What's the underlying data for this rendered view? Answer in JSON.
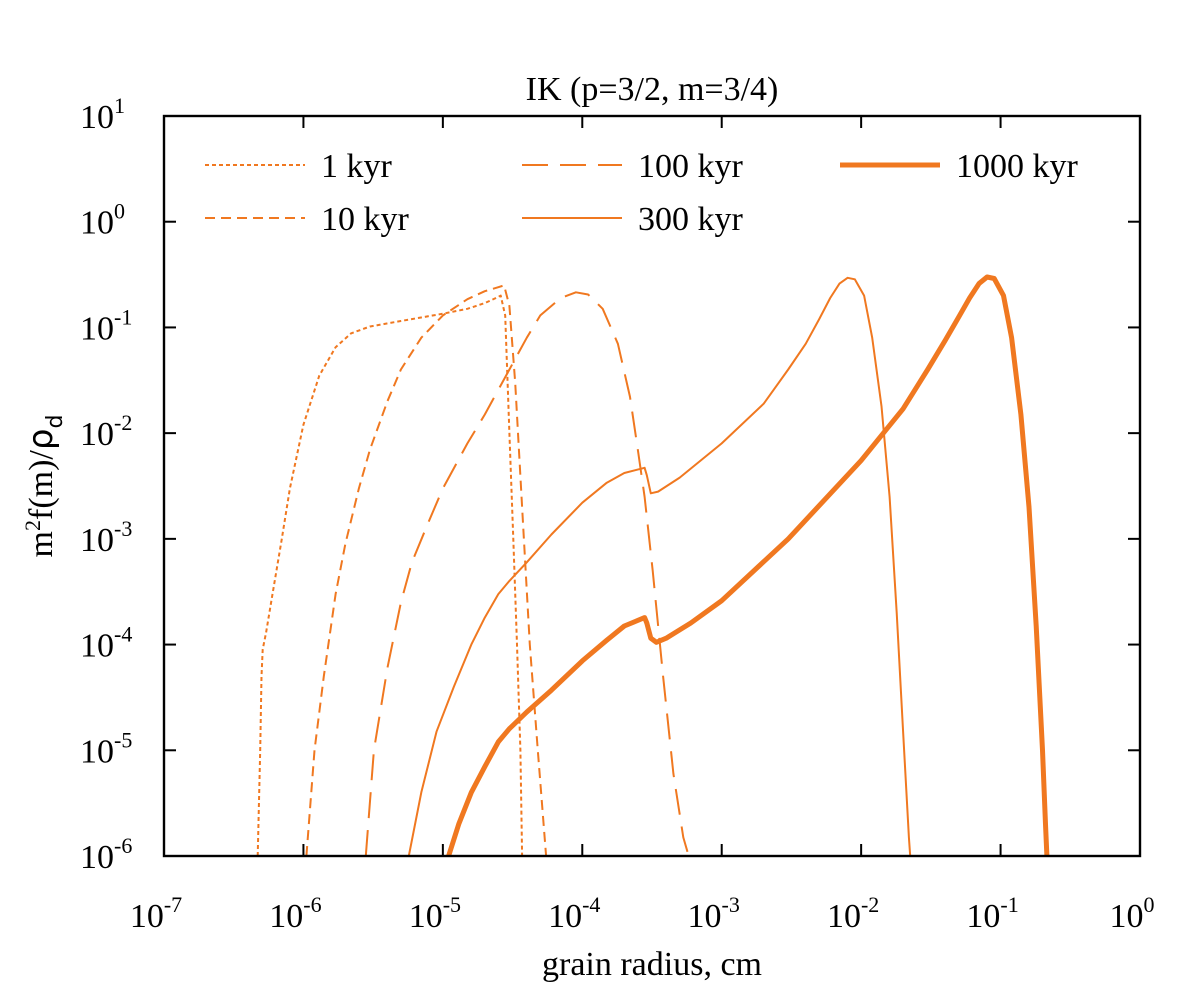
{
  "chart_data": {
    "type": "line",
    "title": "IK (p=3/2, m=3/4)",
    "xlabel": "grain radius, cm",
    "ylabel": "m²f(m)/ρd",
    "ylabel_parts": {
      "main": "m",
      "sup": "2",
      "mid": "f(m)/",
      "rho": "ρ",
      "sub": "d"
    },
    "xscale": "log",
    "yscale": "log",
    "xlim": [
      1e-07,
      1
    ],
    "ylim": [
      1e-06,
      10
    ],
    "x_ticks": [
      {
        "base": "10",
        "exp": "-7"
      },
      {
        "base": "10",
        "exp": "-6"
      },
      {
        "base": "10",
        "exp": "-5"
      },
      {
        "base": "10",
        "exp": "-4"
      },
      {
        "base": "10",
        "exp": "-3"
      },
      {
        "base": "10",
        "exp": "-2"
      },
      {
        "base": "10",
        "exp": "-1"
      },
      {
        "base": "10",
        "exp": "0"
      }
    ],
    "y_ticks": [
      {
        "base": "10",
        "exp": "-6"
      },
      {
        "base": "10",
        "exp": "-5"
      },
      {
        "base": "10",
        "exp": "-4"
      },
      {
        "base": "10",
        "exp": "-3"
      },
      {
        "base": "10",
        "exp": "-2"
      },
      {
        "base": "10",
        "exp": "-1"
      },
      {
        "base": "10",
        "exp": "0"
      },
      {
        "base": "10",
        "exp": "1"
      }
    ],
    "color": "#f07820",
    "legend_position": "top",
    "series": [
      {
        "name": "1 kyr",
        "dash": "4,3",
        "width": 2,
        "points": [
          [
            4.7e-07,
            1e-06
          ],
          [
            4.9e-07,
            1e-05
          ],
          [
            5e-07,
            5e-05
          ],
          [
            5.1e-07,
            9e-05
          ],
          [
            5.4e-07,
            0.00013
          ],
          [
            6e-07,
            0.0003
          ],
          [
            7e-07,
            0.001
          ],
          [
            8e-07,
            0.003
          ],
          [
            1e-06,
            0.012
          ],
          [
            1.3e-06,
            0.035
          ],
          [
            1.7e-06,
            0.065
          ],
          [
            2.2e-06,
            0.088
          ],
          [
            3e-06,
            0.102
          ],
          [
            5e-06,
            0.115
          ],
          [
            1e-05,
            0.135
          ],
          [
            1.5e-05,
            0.15
          ],
          [
            2e-05,
            0.17
          ],
          [
            2.4e-05,
            0.19
          ],
          [
            2.6e-05,
            0.2
          ],
          [
            2.8e-05,
            0.13
          ],
          [
            3e-05,
            0.01
          ],
          [
            3.2e-05,
            0.001
          ],
          [
            3.4e-05,
            0.0001
          ],
          [
            3.6e-05,
            1e-05
          ],
          [
            3.7e-05,
            1e-06
          ]
        ]
      },
      {
        "name": "10 kyr",
        "dash": "10,6",
        "width": 2,
        "points": [
          [
            1.05e-06,
            1e-06
          ],
          [
            1.2e-06,
            1e-05
          ],
          [
            1.4e-06,
            5e-05
          ],
          [
            1.7e-06,
            0.0003
          ],
          [
            2e-06,
            0.0009
          ],
          [
            2.5e-06,
            0.003
          ],
          [
            3e-06,
            0.007
          ],
          [
            4e-06,
            0.02
          ],
          [
            5e-06,
            0.04
          ],
          [
            7e-06,
            0.08
          ],
          [
            1e-05,
            0.13
          ],
          [
            1.5e-05,
            0.185
          ],
          [
            2e-05,
            0.22
          ],
          [
            2.5e-05,
            0.24
          ],
          [
            2.75e-05,
            0.25
          ],
          [
            3e-05,
            0.16
          ],
          [
            3.3e-05,
            0.03
          ],
          [
            3.7e-05,
            0.002
          ],
          [
            4.2e-05,
            0.0001
          ],
          [
            4.8e-05,
            1e-05
          ],
          [
            5.5e-05,
            1e-06
          ]
        ]
      },
      {
        "name": "100 kyr",
        "dash": "26,12",
        "width": 2,
        "points": [
          [
            2.8e-06,
            1e-06
          ],
          [
            3.2e-06,
            1e-05
          ],
          [
            4e-06,
            6e-05
          ],
          [
            5e-06,
            0.00025
          ],
          [
            6e-06,
            0.0006
          ],
          [
            8e-06,
            0.0015
          ],
          [
            1e-05,
            0.003
          ],
          [
            1.5e-05,
            0.008
          ],
          [
            2e-05,
            0.015
          ],
          [
            3e-05,
            0.04
          ],
          [
            4e-05,
            0.08
          ],
          [
            5e-05,
            0.13
          ],
          [
            7e-05,
            0.19
          ],
          [
            9e-05,
            0.215
          ],
          [
            0.00011,
            0.205
          ],
          [
            0.00014,
            0.15
          ],
          [
            0.00018,
            0.07
          ],
          [
            0.00022,
            0.022
          ],
          [
            0.00025,
            0.007
          ],
          [
            0.00028,
            0.0025
          ],
          [
            0.00032,
            0.0005
          ],
          [
            0.00038,
            5e-05
          ],
          [
            0.00045,
            6e-06
          ],
          [
            0.00053,
            1.5e-06
          ],
          [
            0.00058,
            1e-06
          ]
        ]
      },
      {
        "name": "300 kyr",
        "dash": "",
        "width": 2,
        "points": [
          [
            5.7e-06,
            1e-06
          ],
          [
            7e-06,
            4e-06
          ],
          [
            9e-06,
            1.5e-05
          ],
          [
            1.2e-05,
            4e-05
          ],
          [
            1.6e-05,
            0.0001
          ],
          [
            2e-05,
            0.00018
          ],
          [
            2.5e-05,
            0.0003
          ],
          [
            3e-05,
            0.0004
          ],
          [
            4e-05,
            0.0006
          ],
          [
            6e-05,
            0.0011
          ],
          [
            0.0001,
            0.0022
          ],
          [
            0.00015,
            0.0034
          ],
          [
            0.0002,
            0.0042
          ],
          [
            0.00028,
            0.0047
          ],
          [
            0.00029,
            0.004
          ],
          [
            0.00031,
            0.0027
          ],
          [
            0.00035,
            0.0028
          ],
          [
            0.0005,
            0.0038
          ],
          [
            0.001,
            0.008
          ],
          [
            0.002,
            0.019
          ],
          [
            0.003,
            0.04
          ],
          [
            0.004,
            0.07
          ],
          [
            0.005,
            0.12
          ],
          [
            0.006,
            0.19
          ],
          [
            0.007,
            0.26
          ],
          [
            0.008,
            0.295
          ],
          [
            0.009,
            0.285
          ],
          [
            0.0105,
            0.2
          ],
          [
            0.012,
            0.08
          ],
          [
            0.014,
            0.018
          ],
          [
            0.016,
            0.0025
          ],
          [
            0.018,
            0.0002
          ],
          [
            0.02,
            1.5e-05
          ],
          [
            0.022,
            1.5e-06
          ],
          [
            0.0225,
            1e-06
          ]
        ]
      },
      {
        "name": "1000 kyr",
        "dash": "",
        "width": 5,
        "points": [
          [
            1.1e-05,
            1e-06
          ],
          [
            1.3e-05,
            2e-06
          ],
          [
            1.6e-05,
            4e-06
          ],
          [
            2e-05,
            7e-06
          ],
          [
            2.5e-05,
            1.2e-05
          ],
          [
            3e-05,
            1.6e-05
          ],
          [
            4e-05,
            2.3e-05
          ],
          [
            6e-05,
            3.7e-05
          ],
          [
            0.0001,
            7e-05
          ],
          [
            0.00015,
            0.00011
          ],
          [
            0.0002,
            0.00015
          ],
          [
            0.00028,
            0.00018
          ],
          [
            0.00029,
            0.00016
          ],
          [
            0.00031,
            0.000115
          ],
          [
            0.00034,
            0.000105
          ],
          [
            0.0004,
            0.000115
          ],
          [
            0.0006,
            0.00016
          ],
          [
            0.001,
            0.00026
          ],
          [
            0.003,
            0.001
          ],
          [
            0.01,
            0.0055
          ],
          [
            0.02,
            0.017
          ],
          [
            0.03,
            0.04
          ],
          [
            0.04,
            0.075
          ],
          [
            0.05,
            0.125
          ],
          [
            0.06,
            0.19
          ],
          [
            0.07,
            0.26
          ],
          [
            0.08,
            0.3
          ],
          [
            0.09,
            0.29
          ],
          [
            0.105,
            0.2
          ],
          [
            0.12,
            0.08
          ],
          [
            0.14,
            0.015
          ],
          [
            0.16,
            0.002
          ],
          [
            0.18,
            0.00015
          ],
          [
            0.2,
            1e-05
          ],
          [
            0.21,
            2e-06
          ],
          [
            0.215,
            1e-06
          ]
        ]
      }
    ]
  }
}
